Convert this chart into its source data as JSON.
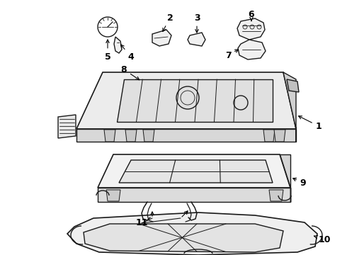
{
  "background_color": "#ffffff",
  "line_color": "#1a1a1a",
  "line_width": 1.0,
  "figsize": [
    4.9,
    3.6
  ],
  "dpi": 100,
  "font_size": 9,
  "font_weight": "bold"
}
